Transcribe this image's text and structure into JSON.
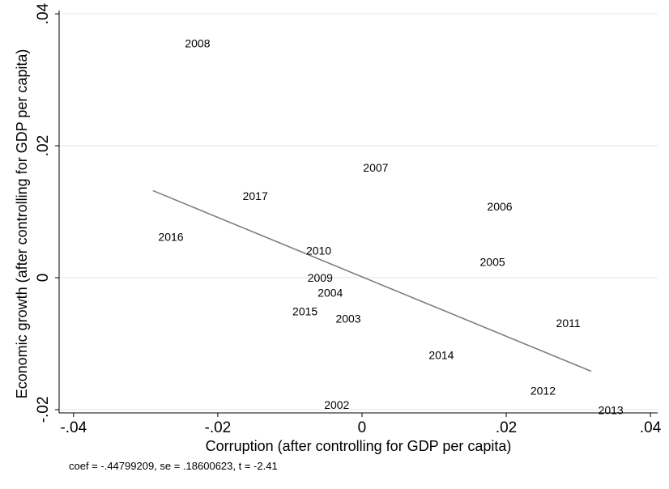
{
  "chart_data": {
    "type": "scatter",
    "title": "",
    "xlabel": "Corruption (after controlling for GDP per capita)",
    "ylabel": "Economic growth (after controlling for GDP per capita)",
    "xlim": [
      -0.042,
      0.041
    ],
    "ylim": [
      -0.0205,
      0.0405
    ],
    "xticks": [
      -0.04,
      -0.02,
      0,
      0.02,
      0.04
    ],
    "xtick_labels": [
      "-.04",
      "-.02",
      "0",
      ".02",
      ".04"
    ],
    "yticks": [
      -0.02,
      0,
      0.02,
      0.04
    ],
    "ytick_labels": [
      "-.02",
      "0",
      ".02",
      ".04"
    ],
    "grid": true,
    "points": [
      {
        "label": "2002",
        "x": -0.0035,
        "y": -0.0193
      },
      {
        "label": "2003",
        "x": -0.0019,
        "y": -0.0062
      },
      {
        "label": "2004",
        "x": -0.0044,
        "y": -0.0023
      },
      {
        "label": "2005",
        "x": 0.0181,
        "y": 0.0024
      },
      {
        "label": "2006",
        "x": 0.0191,
        "y": 0.0108
      },
      {
        "label": "2007",
        "x": 0.0019,
        "y": 0.0167
      },
      {
        "label": "2008",
        "x": -0.0228,
        "y": 0.0355
      },
      {
        "label": "2009",
        "x": -0.0058,
        "y": 0.0
      },
      {
        "label": "2010",
        "x": -0.006,
        "y": 0.0041
      },
      {
        "label": "2011",
        "x": 0.0286,
        "y": -0.0069
      },
      {
        "label": "2012",
        "x": 0.0251,
        "y": -0.0171
      },
      {
        "label": "2013",
        "x": 0.0345,
        "y": -0.0201
      },
      {
        "label": "2014",
        "x": 0.011,
        "y": -0.0117
      },
      {
        "label": "2015",
        "x": -0.0079,
        "y": -0.0051
      },
      {
        "label": "2016",
        "x": -0.0265,
        "y": 0.0062
      },
      {
        "label": "2017",
        "x": -0.0148,
        "y": 0.0124
      }
    ],
    "fit_line": {
      "x": [
        -0.029,
        0.0318
      ],
      "y": [
        0.0132,
        -0.0142
      ]
    },
    "note": "coef = -.44799209, se = .18600623, t = -2.41"
  }
}
